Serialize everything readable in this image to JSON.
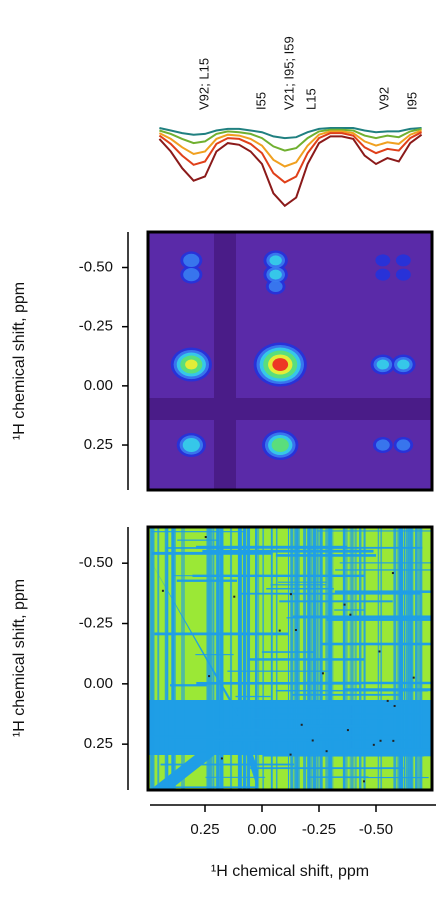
{
  "chart_data": [
    {
      "type": "line",
      "annotations": [
        "V92; L15",
        "I55",
        "V21; I95; I59",
        "L15",
        "V92",
        "I95"
      ],
      "x": [
        0.45,
        0.4,
        0.35,
        0.3,
        0.25,
        0.2,
        0.15,
        0.1,
        0.05,
        0.0,
        -0.05,
        -0.1,
        -0.15,
        -0.2,
        -0.25,
        -0.3,
        -0.35,
        -0.4,
        -0.45,
        -0.5,
        -0.55,
        -0.6,
        -0.65,
        -0.7
      ],
      "xlim": [
        0.5,
        -0.75
      ],
      "ylim": [
        -1,
        0.1
      ],
      "series": [
        {
          "color": "#8b1a1a",
          "values": [
            -0.15,
            -0.3,
            -0.5,
            -0.65,
            -0.6,
            -0.3,
            -0.2,
            -0.22,
            -0.3,
            -0.45,
            -0.8,
            -0.95,
            -0.85,
            -0.45,
            -0.2,
            -0.12,
            -0.12,
            -0.15,
            -0.35,
            -0.45,
            -0.38,
            -0.42,
            -0.2,
            -0.1
          ]
        },
        {
          "color": "#e0401a",
          "values": [
            -0.11,
            -0.21,
            -0.35,
            -0.46,
            -0.42,
            -0.21,
            -0.14,
            -0.15,
            -0.21,
            -0.32,
            -0.56,
            -0.67,
            -0.6,
            -0.32,
            -0.14,
            -0.08,
            -0.08,
            -0.11,
            -0.25,
            -0.32,
            -0.27,
            -0.29,
            -0.14,
            -0.07
          ]
        },
        {
          "color": "#f0a020",
          "values": [
            -0.08,
            -0.15,
            -0.25,
            -0.33,
            -0.3,
            -0.15,
            -0.1,
            -0.11,
            -0.15,
            -0.23,
            -0.4,
            -0.48,
            -0.43,
            -0.23,
            -0.1,
            -0.06,
            -0.06,
            -0.08,
            -0.18,
            -0.23,
            -0.19,
            -0.21,
            -0.1,
            -0.05
          ]
        },
        {
          "color": "#70b030",
          "values": [
            -0.05,
            -0.09,
            -0.15,
            -0.2,
            -0.18,
            -0.09,
            -0.06,
            -0.07,
            -0.09,
            -0.14,
            -0.24,
            -0.29,
            -0.26,
            -0.14,
            -0.06,
            -0.04,
            -0.04,
            -0.05,
            -0.11,
            -0.14,
            -0.11,
            -0.13,
            -0.06,
            -0.03
          ]
        },
        {
          "color": "#208080",
          "values": [
            -0.02,
            -0.05,
            -0.08,
            -0.1,
            -0.09,
            -0.05,
            -0.03,
            -0.03,
            -0.05,
            -0.07,
            -0.12,
            -0.14,
            -0.13,
            -0.07,
            -0.03,
            -0.02,
            -0.02,
            -0.02,
            -0.05,
            -0.07,
            -0.06,
            -0.06,
            -0.03,
            -0.02
          ]
        }
      ]
    },
    {
      "type": "contour",
      "ylabel": "¹H chemical shift, ppm",
      "xlim": [
        0.5,
        -0.75
      ],
      "ylim": [
        -0.65,
        0.44
      ],
      "yticks": [
        {
          "value": -0.5,
          "label": "-0.50"
        },
        {
          "value": -0.25,
          "label": "-0.25"
        },
        {
          "value": 0,
          "label": "0.00"
        },
        {
          "value": 0.25,
          "label": "0.25"
        }
      ],
      "peaks": [
        {
          "x": 0.31,
          "y": -0.53,
          "z": 0.35
        },
        {
          "x": 0.31,
          "y": -0.47,
          "z": 0.35
        },
        {
          "x": -0.06,
          "y": -0.53,
          "z": 0.4
        },
        {
          "x": -0.06,
          "y": -0.47,
          "z": 0.4
        },
        {
          "x": -0.06,
          "y": -0.42,
          "z": 0.3
        },
        {
          "x": -0.53,
          "y": -0.53,
          "z": 0.2
        },
        {
          "x": -0.62,
          "y": -0.53,
          "z": 0.2
        },
        {
          "x": -0.53,
          "y": -0.47,
          "z": 0.2
        },
        {
          "x": -0.62,
          "y": -0.47,
          "z": 0.2
        },
        {
          "x": 0.31,
          "y": -0.09,
          "z": 0.75
        },
        {
          "x": -0.08,
          "y": -0.09,
          "z": 1.0
        },
        {
          "x": -0.53,
          "y": -0.09,
          "z": 0.4
        },
        {
          "x": -0.62,
          "y": -0.09,
          "z": 0.4
        },
        {
          "x": 0.31,
          "y": 0.25,
          "z": 0.5
        },
        {
          "x": -0.08,
          "y": 0.25,
          "z": 0.65
        },
        {
          "x": -0.53,
          "y": 0.25,
          "z": 0.3
        },
        {
          "x": -0.62,
          "y": 0.25,
          "z": 0.3
        }
      ]
    },
    {
      "type": "contour",
      "ylabel": "¹H chemical shift, ppm",
      "xlabel": "¹H chemical shift, ppm",
      "xlim": [
        0.5,
        -0.75
      ],
      "ylim": [
        -0.65,
        0.44
      ],
      "yticks": [
        {
          "value": -0.5,
          "label": "-0.50"
        },
        {
          "value": -0.25,
          "label": "-0.25"
        },
        {
          "value": 0,
          "label": "0.00"
        },
        {
          "value": 0.25,
          "label": "0.25"
        }
      ],
      "xticks": [
        {
          "value": 0.25,
          "label": "0.25"
        },
        {
          "value": 0,
          "label": "0.00"
        },
        {
          "value": -0.25,
          "label": "-0.25"
        },
        {
          "value": -0.5,
          "label": "-0.50"
        }
      ]
    }
  ]
}
